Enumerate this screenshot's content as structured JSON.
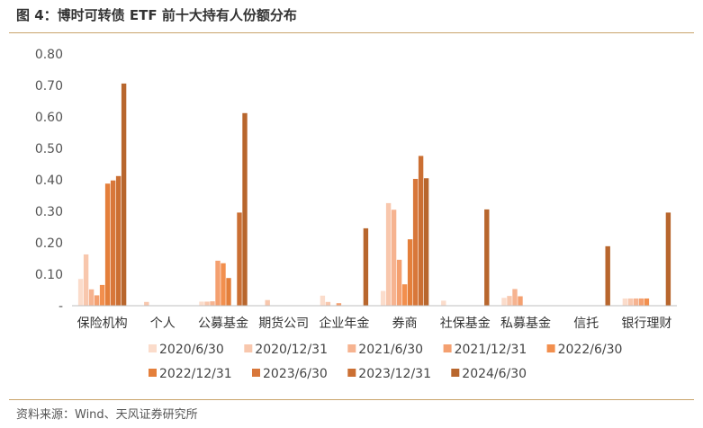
{
  "figure": {
    "title": "图 4：博时可转债 ETF 前十大持有人份额分布",
    "source": "资料来源：Wind、天风证券研究所"
  },
  "chart_data": {
    "type": "bar",
    "categories": [
      "保险机构",
      "个人",
      "公募基金",
      "期货公司",
      "企业年金",
      "券商",
      "社保基金",
      "私募基金",
      "信托",
      "银行理财"
    ],
    "ytick_labels": [
      "-",
      "0.10",
      "0.20",
      "0.30",
      "0.40",
      "0.50",
      "0.60",
      "0.70",
      "0.80"
    ],
    "ylim": [
      0,
      0.8
    ],
    "legend_position": "bottom",
    "series": [
      {
        "name": "2020/6/30",
        "color": "#fbdccb",
        "values": [
          0.085,
          0,
          0.013,
          0,
          0.032,
          0.047,
          0.016,
          0.025,
          0,
          0.023
        ]
      },
      {
        "name": "2020/12/31",
        "color": "#f8c7ad",
        "values": [
          0.163,
          0.012,
          0.013,
          0.018,
          0.012,
          0.326,
          0,
          0.031,
          0,
          0.023
        ]
      },
      {
        "name": "2021/6/30",
        "color": "#f6b390",
        "values": [
          0.052,
          0,
          0.014,
          0,
          0,
          0.305,
          0,
          0.053,
          0,
          0.023
        ]
      },
      {
        "name": "2021/12/31",
        "color": "#f4a070",
        "values": [
          0.033,
          0,
          0.143,
          0,
          0.008,
          0.146,
          0,
          0.03,
          0,
          0.023
        ]
      },
      {
        "name": "2022/6/30",
        "color": "#f28f4e",
        "values": [
          0.066,
          0,
          0.135,
          0,
          0,
          0.068,
          0,
          0,
          0,
          0.023
        ]
      },
      {
        "name": "2022/12/31",
        "color": "#e47f3b",
        "values": [
          0.388,
          0,
          0.088,
          0,
          0,
          0.211,
          0,
          0,
          0,
          0
        ]
      },
      {
        "name": "2023/6/30",
        "color": "#d8773a",
        "values": [
          0.398,
          0,
          0,
          0,
          0,
          0.403,
          0,
          0,
          0,
          0
        ]
      },
      {
        "name": "2023/12/31",
        "color": "#cb6f33",
        "values": [
          0.412,
          0,
          0.296,
          0,
          0,
          0.476,
          0,
          0,
          0,
          0
        ]
      },
      {
        "name": "2024/6/30",
        "color": "#b8662d",
        "values": [
          0.706,
          0,
          0.612,
          0,
          0.246,
          0.405,
          0.306,
          0,
          0.189,
          0.296
        ]
      }
    ]
  }
}
